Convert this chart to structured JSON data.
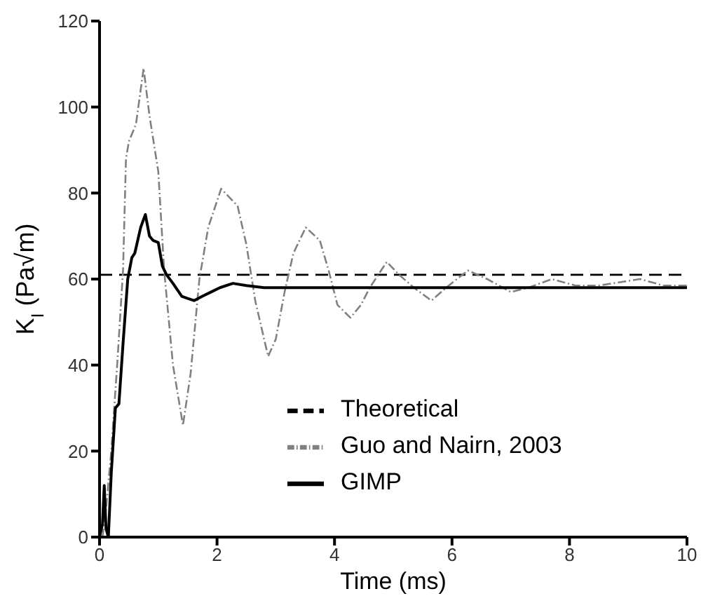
{
  "chart_data": {
    "type": "line",
    "xlabel": "Time (ms)",
    "ylabel": "K$_{I}$ (Pa√m)",
    "xlim": [
      0,
      10
    ],
    "xticks": [
      0,
      2,
      4,
      6,
      8,
      10
    ],
    "ylim": [
      0,
      120
    ],
    "yticks": [
      0,
      20,
      40,
      60,
      80,
      100,
      120
    ],
    "grid": false,
    "legend": "bottom right",
    "marker": "none",
    "series": [
      {
        "name": "Theoretical",
        "color": "#000000",
        "line_style": "dashed",
        "x": [
          0,
          10
        ],
        "values": [
          61,
          61
        ]
      },
      {
        "name": "Guo and Nairn, 2003",
        "color": "#808080",
        "line_style": "dotted",
        "x": [
          0.05,
          0.1,
          0.2,
          0.3,
          0.4,
          0.45,
          0.5,
          0.62,
          0.75,
          0.85,
          1.0,
          1.1,
          1.25,
          1.42,
          1.55,
          1.7,
          1.85,
          2.07,
          2.35,
          2.5,
          2.65,
          2.87,
          3.0,
          3.15,
          3.3,
          3.51,
          3.75,
          3.9,
          4.05,
          4.27,
          4.45,
          4.6,
          4.89,
          5.1,
          5.35,
          5.65,
          5.9,
          6.27,
          6.6,
          7.0,
          7.3,
          7.7,
          8.1,
          8.5,
          9.2,
          9.6,
          10
        ],
        "values": [
          0,
          5,
          20,
          40,
          62,
          88,
          92,
          96,
          109,
          98,
          85,
          62,
          40,
          26,
          38,
          60,
          72,
          81,
          77,
          68,
          55,
          42,
          46,
          57,
          66,
          72,
          69,
          62,
          54,
          51,
          54,
          58,
          64,
          61,
          58,
          55,
          58,
          62,
          60,
          57,
          58,
          60,
          58.5,
          58.5,
          60,
          58.5,
          58.5
        ]
      },
      {
        "name": "GIMP",
        "color": "#000000",
        "line_style": "solid",
        "x": [
          0,
          0.05,
          0.08,
          0.11,
          0.15,
          0.2,
          0.27,
          0.33,
          0.4,
          0.48,
          0.55,
          0.6,
          0.7,
          0.78,
          0.85,
          0.91,
          1.0,
          1.07,
          1.14,
          1.25,
          1.4,
          1.5,
          1.61,
          1.75,
          1.9,
          2.05,
          2.27,
          2.5,
          2.8,
          4,
          6,
          8,
          10
        ],
        "values": [
          0,
          3,
          12,
          2,
          0,
          15,
          30,
          31,
          45,
          60,
          65,
          66,
          72,
          75,
          70,
          69,
          68.5,
          63,
          61,
          59,
          56,
          55.5,
          55,
          56,
          57,
          58,
          59,
          58.5,
          58,
          58,
          58,
          58,
          58
        ]
      }
    ]
  }
}
